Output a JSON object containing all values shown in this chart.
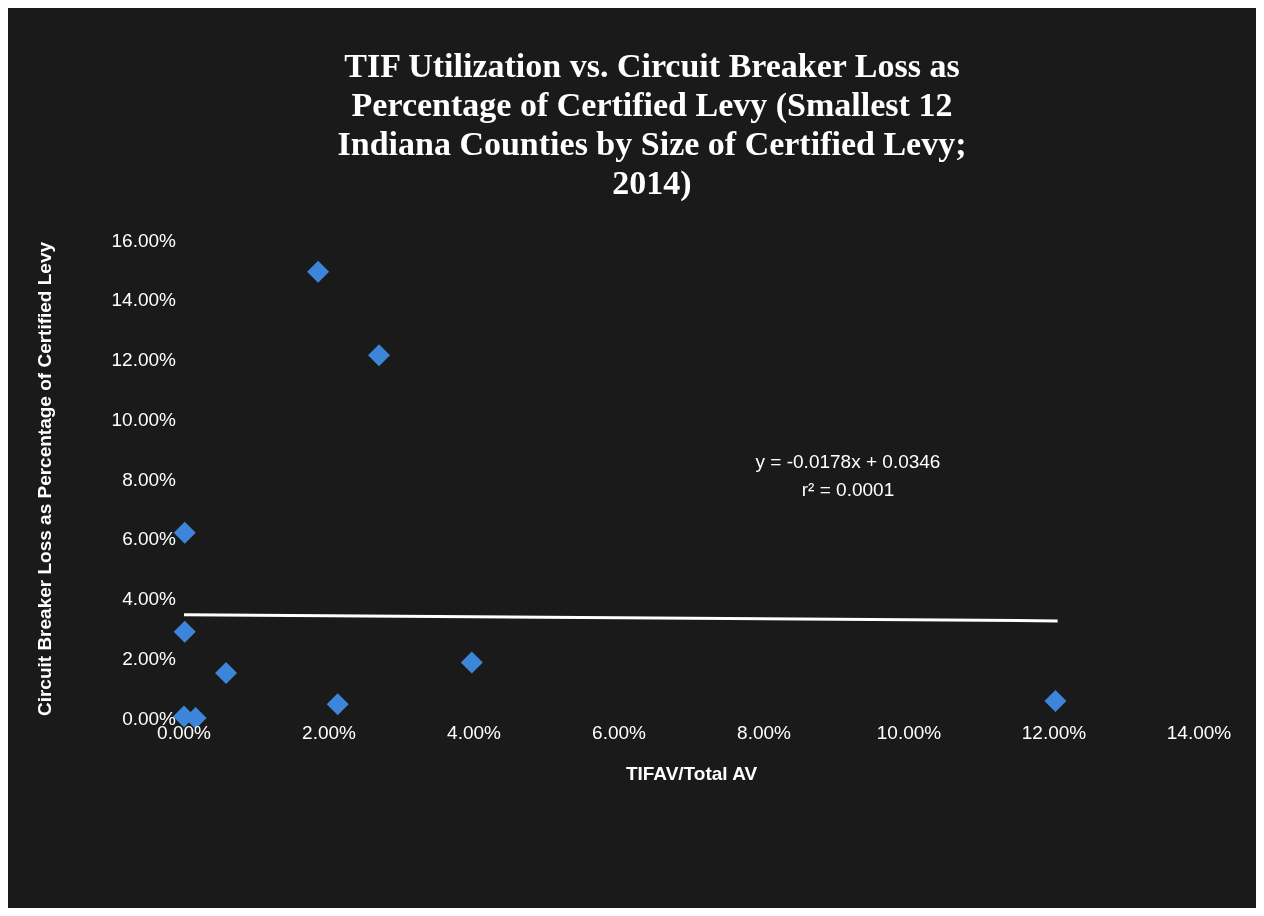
{
  "chart_data": {
    "type": "scatter",
    "title": "TIF Utilization vs.  Circuit Breaker Loss as Percentage of Certified Levy (Smallest 12 Indiana Counties by Size of Certified Levy; 2014)",
    "xlabel": "TIFAV/Total AV",
    "ylabel": "Circuit Breaker Loss as Percentage of Certified Levy",
    "series": [
      {
        "color": "#3d85d8",
        "x": [
          1.85,
          2.69,
          0.01,
          0.01,
          0.58,
          3.97,
          2.12,
          12.02,
          0.0,
          0.16
        ],
        "values": [
          14.94,
          12.14,
          6.2,
          2.89,
          1.51,
          1.86,
          0.46,
          0.57,
          0.05,
          0.0
        ]
      },
      {
        "type": "line",
        "marker": "none",
        "color": "#ffffff",
        "x": [
          0,
          12.05
        ],
        "values": [
          3.46,
          3.25
        ]
      }
    ],
    "marker": "diamond",
    "xlim": [
      0,
      14
    ],
    "xticks": [
      {
        "value": 0,
        "label": "0.00%"
      },
      {
        "value": 2,
        "label": "2.00%"
      },
      {
        "value": 4,
        "label": "4.00%"
      },
      {
        "value": 6,
        "label": "6.00%"
      },
      {
        "value": 8,
        "label": "8.00%"
      },
      {
        "value": 10,
        "label": "10.00%"
      },
      {
        "value": 12,
        "label": "12.00%"
      },
      {
        "value": 14,
        "label": "14.00%"
      }
    ],
    "ylim": [
      0,
      16
    ],
    "yticks": [
      {
        "value": 0,
        "label": "0.00%"
      },
      {
        "value": 2,
        "label": "2.00%"
      },
      {
        "value": 4,
        "label": "4.00%"
      },
      {
        "value": 6,
        "label": "6.00%"
      },
      {
        "value": 8,
        "label": "8.00%"
      },
      {
        "value": 10,
        "label": "10.00%"
      },
      {
        "value": 12,
        "label": "12.00%"
      },
      {
        "value": 14,
        "label": "14.00%"
      },
      {
        "value": 16,
        "label": "16.00%"
      }
    ],
    "annotations": [
      "y = -0.0178x + 0.0346",
      "r² = 0.0001"
    ]
  }
}
